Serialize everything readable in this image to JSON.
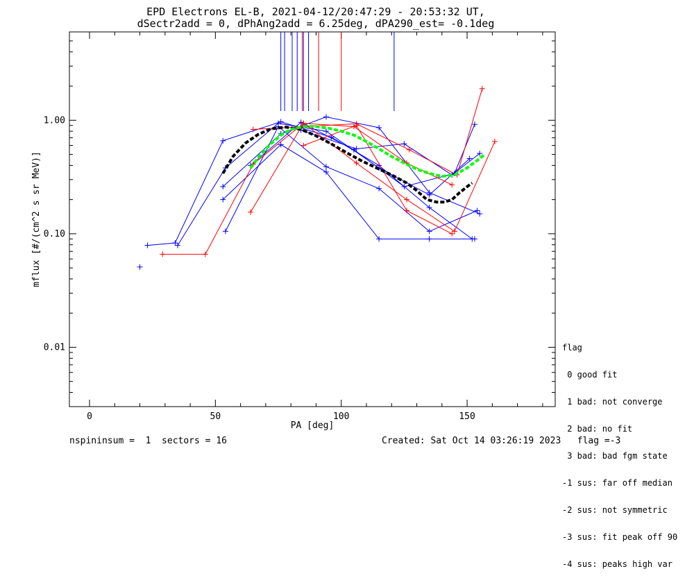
{
  "chart_data": {
    "type": "line",
    "title": "EPD Electrons EL-B, 2021-04-12/20:47:29 - 20:53:32 UT,",
    "subtitle": "dSectr2add = 0, dPhAng2add = 6.25deg, dPA290_est=  -0.1deg",
    "xlabel": "PA [deg]",
    "ylabel": "mflux [#/(cm^2 s sr MeV)]",
    "x_ticks": [
      "0",
      "50",
      "100",
      "150"
    ],
    "y_ticks": [
      "0.01",
      "0.10",
      "1.00"
    ],
    "xlim": [
      -8,
      185
    ],
    "ylim": [
      0.003,
      6.0
    ],
    "y_scale": "log",
    "grid": false,
    "series": [
      {
        "color": "#0000ff",
        "x": [
          20
        ],
        "y": [
          0.051
        ]
      },
      {
        "color": "#0000ff",
        "x": [
          23,
          34,
          53,
          76,
          96,
          115,
          135,
          152
        ],
        "y": [
          0.079,
          0.083,
          0.66,
          0.97,
          0.71,
          0.4,
          0.17,
          0.09
        ]
      },
      {
        "color": "#0000ff",
        "x": [
          35,
          54,
          75,
          94,
          115,
          135,
          151
        ],
        "y": [
          0.079,
          0.38,
          0.94,
          0.8,
          0.38,
          0.22,
          0.46
        ]
      },
      {
        "color": "#0000ff",
        "x": [
          53,
          76,
          94,
          115,
          135,
          153
        ],
        "y": [
          0.2,
          0.61,
          0.35,
          0.09,
          0.09,
          0.09
        ]
      },
      {
        "color": "#0000ff",
        "x": [
          54,
          75,
          94,
          115,
          135,
          154
        ],
        "y": [
          0.105,
          0.88,
          0.39,
          0.25,
          0.105,
          0.16
        ]
      },
      {
        "color": "#0000ff",
        "x": [
          53,
          76,
          94,
          115,
          135,
          155
        ],
        "y": [
          0.26,
          0.76,
          1.07,
          0.86,
          0.23,
          0.15
        ]
      },
      {
        "color": "#0000ff",
        "x": [
          64,
          84,
          105,
          125,
          145,
          153
        ],
        "y": [
          0.4,
          0.96,
          0.55,
          0.26,
          0.34,
          0.92
        ]
      },
      {
        "color": "#0000ff",
        "x": [
          84,
          106,
          125,
          144,
          155
        ],
        "y": [
          0.82,
          0.56,
          0.62,
          0.33,
          0.51
        ]
      },
      {
        "color": "#ff0000",
        "x": [
          29,
          46,
          65,
          85,
          105,
          126,
          144
        ],
        "y": [
          0.066,
          0.066,
          0.41,
          0.94,
          0.88,
          0.42,
          0.27
        ]
      },
      {
        "color": "#ff0000",
        "x": [
          64,
          85,
          106,
          126,
          145,
          161
        ],
        "y": [
          0.155,
          0.94,
          0.42,
          0.2,
          0.105,
          0.65
        ]
      },
      {
        "color": "#ff0000",
        "x": [
          65,
          85,
          106,
          127,
          146,
          156
        ],
        "y": [
          0.83,
          0.88,
          0.93,
          0.55,
          0.33,
          1.9
        ]
      },
      {
        "color": "#ff0000",
        "x": [
          85,
          106,
          126,
          144
        ],
        "y": [
          0.6,
          0.9,
          0.16,
          0.1
        ]
      },
      {
        "color": "#000000",
        "dash": "black-dashed-fit",
        "x": [
          53,
          57,
          62,
          67,
          72,
          78,
          84,
          90,
          96,
          102,
          108,
          114,
          120,
          126,
          130,
          134,
          138,
          141,
          144,
          147,
          150,
          152
        ],
        "y": [
          0.34,
          0.48,
          0.63,
          0.75,
          0.84,
          0.87,
          0.83,
          0.73,
          0.62,
          0.52,
          0.44,
          0.38,
          0.33,
          0.28,
          0.24,
          0.2,
          0.19,
          0.19,
          0.2,
          0.23,
          0.26,
          0.28
        ]
      },
      {
        "color": "#00ff00",
        "dash": "green-dashed-fit",
        "x": [
          64,
          68,
          72,
          76,
          80,
          85,
          90,
          95,
          100,
          105,
          110,
          115,
          120,
          125,
          130,
          135,
          140,
          145,
          150,
          155,
          157
        ],
        "y": [
          0.38,
          0.5,
          0.62,
          0.74,
          0.83,
          0.88,
          0.88,
          0.85,
          0.8,
          0.74,
          0.65,
          0.56,
          0.48,
          0.42,
          0.37,
          0.34,
          0.32,
          0.33,
          0.38,
          0.46,
          0.5
        ]
      }
    ],
    "vlines": [
      {
        "x": 76,
        "color": "#0000ff"
      },
      {
        "x": 77.5,
        "color": "#0000ff"
      },
      {
        "x": 80.5,
        "color": "#0000ff"
      },
      {
        "x": 82.5,
        "color": "#0000ff"
      },
      {
        "x": 85,
        "color": "#0000ff"
      },
      {
        "x": 87,
        "color": "#0000ff"
      },
      {
        "x": 121,
        "color": "#0000ff"
      },
      {
        "x": 84.5,
        "color": "#ff0000"
      },
      {
        "x": 91,
        "color": "#ff0000"
      },
      {
        "x": 100,
        "color": "#ff0000"
      }
    ]
  },
  "legend": {
    "title": "flag",
    "items": [
      " 0 good fit",
      " 1 bad: not converge",
      " 2 bad: no fit",
      " 3 bad: bad fgm state",
      "-1 sus: far off median",
      "-2 sus: not symmetric",
      "-3 sus: fit peak off 90",
      "-4 sus: peaks high var"
    ]
  },
  "footer": {
    "left": "nspininsum =  1  sectors = 16",
    "right": "Created: Sat Oct 14 03:26:19 2023   flag =-3"
  }
}
